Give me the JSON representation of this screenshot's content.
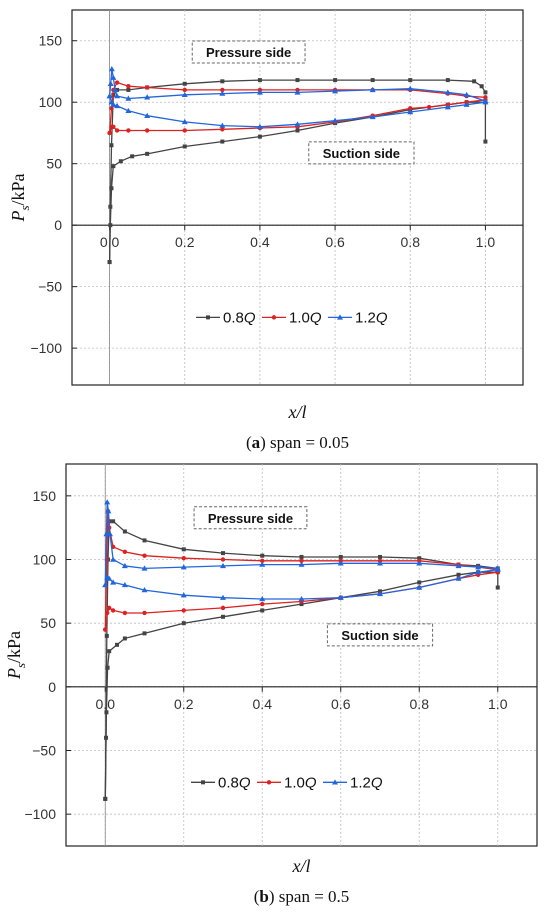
{
  "chart_data": [
    {
      "id": "a",
      "type": "line",
      "caption_letter": "a",
      "caption_rest": " span = 0.05",
      "xlabel": "x/l",
      "ylabel_main": "P",
      "ylabel_sub": "s",
      "ylabel_unit": "/kPa",
      "xlim": [
        -0.1,
        1.1
      ],
      "ylim": [
        -130,
        175
      ],
      "xticks": [
        0.0,
        0.2,
        0.4,
        0.6,
        0.8,
        1.0
      ],
      "xtick_labels": [
        "0.0",
        "0.2",
        "0.4",
        "0.6",
        "0.8",
        "1.0"
      ],
      "yticks": [
        150,
        100,
        50,
        0,
        -50,
        -100
      ],
      "ytick_labels": [
        "150",
        "100",
        "50",
        "0",
        "−50",
        "−100"
      ],
      "grid": true,
      "legend_position": "bottom-center",
      "annotations": [
        {
          "text": "Pressure side",
          "x": 0.37,
          "y": 140
        },
        {
          "text": "Suction side",
          "x": 0.67,
          "y": 58
        }
      ],
      "series": [
        {
          "name": "0.8Q",
          "legend_main": "0.8",
          "legend_italic": "Q",
          "color": "#444444",
          "marker": "square",
          "pressure": [
            [
              0.0,
              -30
            ],
            [
              0.002,
              15
            ],
            [
              0.005,
              65
            ],
            [
              0.01,
              106
            ],
            [
              0.02,
              110
            ],
            [
              0.05,
              110
            ],
            [
              0.1,
              112
            ],
            [
              0.2,
              115
            ],
            [
              0.3,
              117
            ],
            [
              0.4,
              118
            ],
            [
              0.5,
              118
            ],
            [
              0.6,
              118
            ],
            [
              0.7,
              118
            ],
            [
              0.8,
              118
            ],
            [
              0.9,
              118
            ],
            [
              0.97,
              117
            ],
            [
              0.99,
              113
            ],
            [
              1.0,
              108
            ]
          ],
          "suction": [
            [
              0.0,
              -30
            ],
            [
              0.002,
              0
            ],
            [
              0.005,
              30
            ],
            [
              0.01,
              48
            ],
            [
              0.03,
              52
            ],
            [
              0.06,
              56
            ],
            [
              0.1,
              58
            ],
            [
              0.2,
              64
            ],
            [
              0.3,
              68
            ],
            [
              0.4,
              72
            ],
            [
              0.5,
              77
            ],
            [
              0.6,
              83
            ],
            [
              0.7,
              88
            ],
            [
              0.8,
              94
            ],
            [
              0.9,
              98
            ],
            [
              0.95,
              100
            ],
            [
              1.0,
              100
            ],
            [
              1.0,
              68
            ]
          ]
        },
        {
          "name": "1.0Q",
          "legend_main": "1.0",
          "legend_italic": "Q",
          "color": "#dd2222",
          "marker": "circle",
          "pressure": [
            [
              0.0,
              75
            ],
            [
              0.005,
              95
            ],
            [
              0.01,
              110
            ],
            [
              0.02,
              116
            ],
            [
              0.05,
              113
            ],
            [
              0.1,
              112
            ],
            [
              0.2,
              110
            ],
            [
              0.3,
              110
            ],
            [
              0.4,
              110
            ],
            [
              0.5,
              110
            ],
            [
              0.6,
              110
            ],
            [
              0.7,
              110
            ],
            [
              0.8,
              110
            ],
            [
              0.9,
              107
            ],
            [
              0.95,
              105
            ],
            [
              1.0,
              104
            ]
          ],
          "suction": [
            [
              0.0,
              75
            ],
            [
              0.005,
              80
            ],
            [
              0.01,
              80
            ],
            [
              0.02,
              77
            ],
            [
              0.05,
              77
            ],
            [
              0.1,
              77
            ],
            [
              0.2,
              77
            ],
            [
              0.3,
              78
            ],
            [
              0.4,
              79
            ],
            [
              0.5,
              80
            ],
            [
              0.6,
              84
            ],
            [
              0.7,
              89
            ],
            [
              0.8,
              95
            ],
            [
              0.85,
              96
            ],
            [
              0.9,
              98
            ],
            [
              0.95,
              100
            ],
            [
              1.0,
              102
            ]
          ]
        },
        {
          "name": "1.2Q",
          "legend_main": "1.2",
          "legend_italic": "Q",
          "color": "#2266dd",
          "marker": "triangle",
          "pressure": [
            [
              0.0,
              105
            ],
            [
              0.003,
              115
            ],
            [
              0.006,
              127
            ],
            [
              0.01,
              120
            ],
            [
              0.015,
              110
            ],
            [
              0.02,
              105
            ],
            [
              0.05,
              103
            ],
            [
              0.1,
              104
            ],
            [
              0.2,
              106
            ],
            [
              0.3,
              107
            ],
            [
              0.4,
              108
            ],
            [
              0.5,
              108
            ],
            [
              0.6,
              109
            ],
            [
              0.7,
              110
            ],
            [
              0.8,
              111
            ],
            [
              0.9,
              108
            ],
            [
              0.95,
              106
            ],
            [
              1.0,
              101
            ]
          ],
          "suction": [
            [
              0.0,
              105
            ],
            [
              0.005,
              100
            ],
            [
              0.01,
              98
            ],
            [
              0.02,
              97
            ],
            [
              0.05,
              93
            ],
            [
              0.1,
              89
            ],
            [
              0.2,
              84
            ],
            [
              0.3,
              81
            ],
            [
              0.4,
              80
            ],
            [
              0.5,
              82
            ],
            [
              0.6,
              85
            ],
            [
              0.7,
              88
            ],
            [
              0.8,
              92
            ],
            [
              0.9,
              96
            ],
            [
              0.95,
              98
            ],
            [
              1.0,
              100
            ]
          ]
        }
      ]
    },
    {
      "id": "b",
      "type": "line",
      "caption_letter": "b",
      "caption_rest": " span = 0.5",
      "xlabel": "x/l",
      "ylabel_main": "P",
      "ylabel_sub": "s",
      "ylabel_unit": "/kPa",
      "xlim": [
        -0.1,
        1.1
      ],
      "ylim": [
        -125,
        175
      ],
      "xticks": [
        0.0,
        0.2,
        0.4,
        0.6,
        0.8,
        1.0
      ],
      "xtick_labels": [
        "0.0",
        "0.2",
        "0.4",
        "0.6",
        "0.8",
        "1.0"
      ],
      "yticks": [
        150,
        100,
        50,
        0,
        -50,
        -100
      ],
      "ytick_labels": [
        "150",
        "100",
        "50",
        "0",
        "−50",
        "−100"
      ],
      "grid": true,
      "legend_position": "bottom-center",
      "annotations": [
        {
          "text": "Pressure side",
          "x": 0.37,
          "y": 132
        },
        {
          "text": "Suction side",
          "x": 0.7,
          "y": 40
        }
      ],
      "series": [
        {
          "name": "0.8Q",
          "legend_main": "0.8",
          "legend_italic": "Q",
          "color": "#444444",
          "marker": "square",
          "pressure": [
            [
              0.0,
              -88
            ],
            [
              0.002,
              -40
            ],
            [
              0.004,
              40
            ],
            [
              0.007,
              100
            ],
            [
              0.01,
              130
            ],
            [
              0.02,
              130
            ],
            [
              0.05,
              122
            ],
            [
              0.1,
              115
            ],
            [
              0.2,
              108
            ],
            [
              0.3,
              105
            ],
            [
              0.4,
              103
            ],
            [
              0.5,
              102
            ],
            [
              0.6,
              102
            ],
            [
              0.7,
              102
            ],
            [
              0.8,
              101
            ],
            [
              0.9,
              96
            ],
            [
              0.95,
              95
            ],
            [
              1.0,
              93
            ]
          ],
          "suction": [
            [
              0.0,
              -88
            ],
            [
              0.003,
              -20
            ],
            [
              0.006,
              15
            ],
            [
              0.01,
              28
            ],
            [
              0.03,
              33
            ],
            [
              0.05,
              38
            ],
            [
              0.1,
              42
            ],
            [
              0.2,
              50
            ],
            [
              0.3,
              55
            ],
            [
              0.4,
              60
            ],
            [
              0.5,
              65
            ],
            [
              0.6,
              70
            ],
            [
              0.7,
              75
            ],
            [
              0.8,
              82
            ],
            [
              0.9,
              88
            ],
            [
              0.95,
              90
            ],
            [
              1.0,
              90
            ],
            [
              1.0,
              78
            ]
          ]
        },
        {
          "name": "1.0Q",
          "legend_main": "1.0",
          "legend_italic": "Q",
          "color": "#dd2222",
          "marker": "circle",
          "pressure": [
            [
              0.0,
              45
            ],
            [
              0.004,
              100
            ],
            [
              0.007,
              138
            ],
            [
              0.01,
              125
            ],
            [
              0.02,
              110
            ],
            [
              0.05,
              106
            ],
            [
              0.1,
              103
            ],
            [
              0.2,
              101
            ],
            [
              0.3,
              100
            ],
            [
              0.4,
              99
            ],
            [
              0.5,
              99
            ],
            [
              0.6,
              99
            ],
            [
              0.7,
              99
            ],
            [
              0.8,
              99
            ],
            [
              0.9,
              96
            ],
            [
              0.95,
              94
            ],
            [
              1.0,
              92
            ]
          ],
          "suction": [
            [
              0.0,
              45
            ],
            [
              0.005,
              58
            ],
            [
              0.01,
              62
            ],
            [
              0.02,
              60
            ],
            [
              0.05,
              58
            ],
            [
              0.1,
              58
            ],
            [
              0.2,
              60
            ],
            [
              0.3,
              62
            ],
            [
              0.4,
              65
            ],
            [
              0.5,
              67
            ],
            [
              0.6,
              70
            ],
            [
              0.7,
              73
            ],
            [
              0.8,
              78
            ],
            [
              0.9,
              85
            ],
            [
              0.95,
              88
            ],
            [
              1.0,
              90
            ]
          ]
        },
        {
          "name": "1.2Q",
          "legend_main": "1.2",
          "legend_italic": "Q",
          "color": "#2266dd",
          "marker": "triangle",
          "pressure": [
            [
              0.0,
              80
            ],
            [
              0.003,
              120
            ],
            [
              0.005,
              145
            ],
            [
              0.008,
              138
            ],
            [
              0.012,
              120
            ],
            [
              0.02,
              100
            ],
            [
              0.05,
              95
            ],
            [
              0.1,
              93
            ],
            [
              0.2,
              94
            ],
            [
              0.3,
              95
            ],
            [
              0.4,
              96
            ],
            [
              0.5,
              96
            ],
            [
              0.6,
              97
            ],
            [
              0.7,
              97
            ],
            [
              0.8,
              97
            ],
            [
              0.9,
              95
            ],
            [
              0.95,
              94
            ],
            [
              1.0,
              93
            ]
          ],
          "suction": [
            [
              0.0,
              80
            ],
            [
              0.005,
              86
            ],
            [
              0.01,
              85
            ],
            [
              0.02,
              82
            ],
            [
              0.05,
              80
            ],
            [
              0.1,
              76
            ],
            [
              0.2,
              72
            ],
            [
              0.3,
              70
            ],
            [
              0.4,
              69
            ],
            [
              0.5,
              69
            ],
            [
              0.6,
              70
            ],
            [
              0.7,
              73
            ],
            [
              0.8,
              78
            ],
            [
              0.9,
              85
            ],
            [
              0.95,
              90
            ],
            [
              1.0,
              92
            ]
          ]
        }
      ]
    }
  ]
}
